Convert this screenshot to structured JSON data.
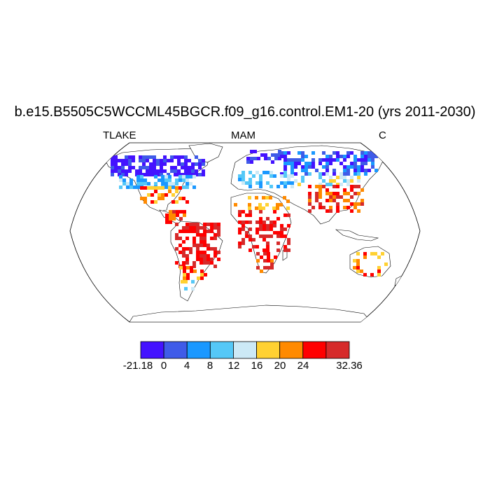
{
  "title": "b.e15.B5505C5WCCML45BGCR.f09_g16.control.EM1-20 (yrs 2011-2030)",
  "left_string": "TLAKE",
  "center_string": "MAM",
  "right_string": "C",
  "colorbar": {
    "colors": [
      "#4412ff",
      "#3f5be8",
      "#1a98ff",
      "#55c8f7",
      "#cce9f6",
      "#ffd132",
      "#ff8a00",
      "#ff0000",
      "#d62a2a"
    ],
    "labels": [
      "-21.18",
      "0",
      "4",
      "8",
      "12",
      "16",
      "20",
      "24",
      "32.36"
    ]
  },
  "projection": "Robinson",
  "land_color": "#ffffff",
  "coastline_color": "#000000"
}
